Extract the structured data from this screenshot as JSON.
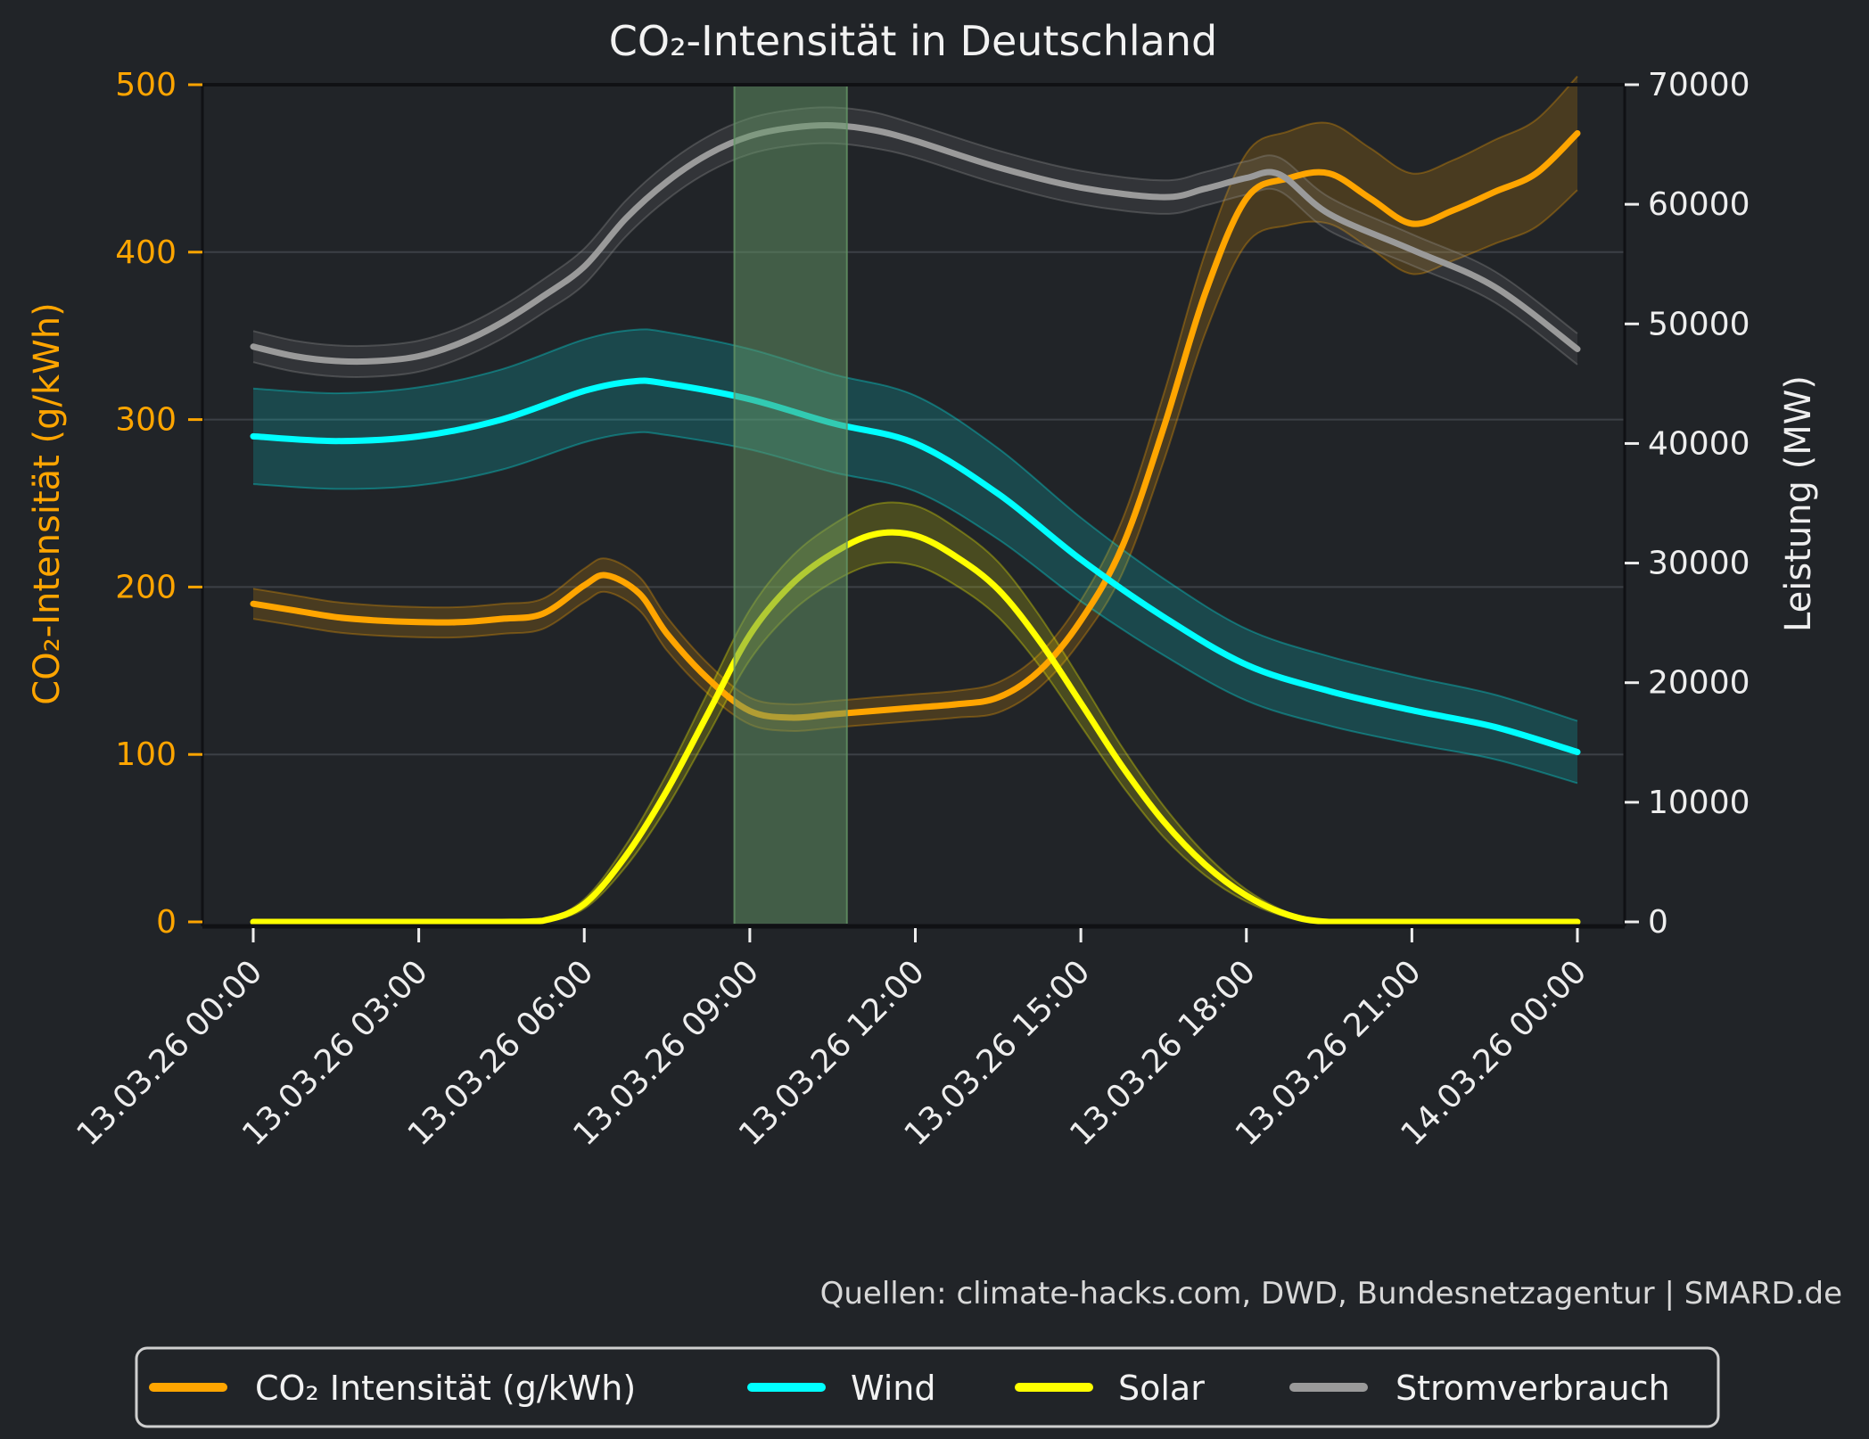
{
  "title": "CO₂-Intensität in Deutschland",
  "source_note": "Quellen: climate-hacks.com, DWD, Bundesnetzagentur | SMARD.de",
  "colors": {
    "background": "#212428",
    "grid": "#3c4046",
    "spine": "#101114",
    "title_text": "#f2f2f2",
    "tick_text": "#eeeeee",
    "muted_text": "#d8d8d8",
    "co2": "#ffa500",
    "wind": "#00ffff",
    "solar": "#ffff00",
    "consumption": "#9a9a9a",
    "highlight_band": "#649666",
    "legend_border": "#cfcfcf"
  },
  "legend": {
    "items": [
      {
        "label": "CO₂ Intensität (g/kWh)",
        "color": "#ffa500"
      },
      {
        "label": "Wind",
        "color": "#00ffff"
      },
      {
        "label": "Solar",
        "color": "#ffff00"
      },
      {
        "label": "Stromverbrauch",
        "color": "#9a9a9a"
      }
    ]
  },
  "chart_data": {
    "type": "line",
    "title": "CO₂-Intensität in Deutschland",
    "grid": "horizontal-only",
    "legend_position": "bottom",
    "x_axis": {
      "unit": "hours from 13.03.26 00:00",
      "tick_hours": [
        0,
        3,
        6,
        9,
        12,
        15,
        18,
        21,
        24
      ],
      "tick_labels": [
        "13.03.26 00:00",
        "13.03.26 03:00",
        "13.03.26 06:00",
        "13.03.26 09:00",
        "13.03.26 12:00",
        "13.03.26 15:00",
        "13.03.26 18:00",
        "13.03.26 21:00",
        "14.03.26 00:00"
      ]
    },
    "y_left": {
      "label": "CO₂-Intensität (g/kWh)",
      "range": [
        0,
        500
      ],
      "ticks": [
        0,
        100,
        200,
        300,
        400,
        500
      ],
      "color": "#ffa500"
    },
    "y_right": {
      "label": "Leistung (MW)",
      "range": [
        0,
        70000
      ],
      "ticks": [
        0,
        10000,
        20000,
        30000,
        40000,
        50000,
        60000,
        70000
      ],
      "color": "#eeeeee"
    },
    "highlight_span_hours": [
      8.72,
      10.76
    ],
    "series": [
      {
        "name": "CO₂ Intensität (g/kWh)",
        "axis": "left",
        "color": "#ffa500",
        "band_opacity": 0.18,
        "t": [
          0,
          0.75,
          1.5,
          2.25,
          3,
          3.75,
          4.5,
          5.25,
          6,
          6.4,
          7,
          7.5,
          8.25,
          9,
          9.75,
          10.5,
          11.25,
          12,
          12.75,
          13.5,
          14.25,
          15,
          15.75,
          16.5,
          17.25,
          18,
          18.75,
          19.5,
          20.25,
          21,
          21.75,
          22.5,
          23.25,
          24
        ],
        "values": [
          190,
          186,
          182,
          180,
          179,
          179,
          181,
          184,
          201,
          207,
          196,
          172,
          145,
          126,
          122,
          124,
          126,
          128,
          130,
          134,
          150,
          180,
          224,
          295,
          375,
          432,
          444,
          447,
          432,
          417,
          425,
          436,
          447,
          471
        ],
        "band_halfwidth": [
          9,
          9,
          9,
          9,
          9,
          9,
          9,
          9,
          10,
          10,
          10,
          10,
          9,
          8,
          8,
          8,
          8,
          8,
          8,
          9,
          10,
          12,
          16,
          20,
          24,
          27,
          28,
          30,
          30,
          30,
          30,
          31,
          32,
          34
        ]
      },
      {
        "name": "Wind",
        "axis": "right",
        "color": "#00ffff",
        "band_opacity": 0.17,
        "t": [
          0,
          1.5,
          3,
          4.5,
          6,
          6.9,
          7.5,
          9,
          10.5,
          12,
          13.5,
          15,
          16.5,
          18,
          19.5,
          21,
          22.5,
          24
        ],
        "values": [
          40600,
          40200,
          40600,
          42000,
          44400,
          45200,
          45000,
          43700,
          41700,
          40000,
          35800,
          30300,
          25500,
          21500,
          19300,
          17700,
          16300,
          14200
        ],
        "band_halfwidth": [
          4000,
          4000,
          4100,
          4200,
          4300,
          4300,
          4300,
          4200,
          4100,
          4000,
          3800,
          3500,
          3200,
          3000,
          2900,
          2800,
          2700,
          2600
        ]
      },
      {
        "name": "Solar",
        "axis": "right",
        "color": "#ffff00",
        "band_opacity": 0.18,
        "t": [
          0,
          3,
          4.5,
          5.25,
          6,
          6.75,
          7.5,
          8.25,
          9,
          9.75,
          10.5,
          11.25,
          12,
          12.75,
          13.5,
          14.25,
          15,
          15.75,
          16.5,
          17.25,
          18,
          18.75,
          19.5,
          21,
          22.5,
          24
        ],
        "values": [
          0,
          0,
          0,
          100,
          1500,
          5500,
          11000,
          17500,
          24000,
          28200,
          30800,
          32400,
          32300,
          30500,
          27800,
          23500,
          18300,
          13000,
          8400,
          4800,
          2200,
          600,
          0,
          0,
          0,
          0
        ],
        "band_halfwidth": [
          0,
          0,
          0,
          60,
          400,
          900,
          1400,
          1800,
          2100,
          2300,
          2400,
          2500,
          2500,
          2400,
          2300,
          2100,
          1900,
          1600,
          1300,
          900,
          500,
          200,
          0,
          0,
          0,
          0
        ]
      },
      {
        "name": "Stromverbrauch",
        "axis": "right",
        "color": "#9a9a9a",
        "band_opacity": 0.14,
        "t": [
          0,
          0.75,
          1.5,
          2.25,
          3,
          3.75,
          4.5,
          5.25,
          6,
          6.75,
          7.5,
          8.25,
          9,
          9.75,
          10.5,
          11.25,
          12,
          13.5,
          15,
          16.5,
          17.25,
          18,
          18.6,
          19.5,
          21,
          22.5,
          24
        ],
        "values": [
          48100,
          47300,
          46900,
          46900,
          47300,
          48400,
          50100,
          52300,
          54800,
          58800,
          61900,
          64200,
          65700,
          66400,
          66600,
          66200,
          65300,
          63100,
          61400,
          60600,
          61300,
          62200,
          62500,
          59200,
          56200,
          53100,
          47900
        ],
        "band_halfwidth": [
          1300,
          1300,
          1300,
          1300,
          1300,
          1300,
          1350,
          1400,
          1500,
          1500,
          1500,
          1500,
          1500,
          1500,
          1500,
          1500,
          1400,
          1400,
          1400,
          1400,
          1400,
          1400,
          1400,
          1400,
          1300,
          1300,
          1300
        ]
      }
    ]
  }
}
